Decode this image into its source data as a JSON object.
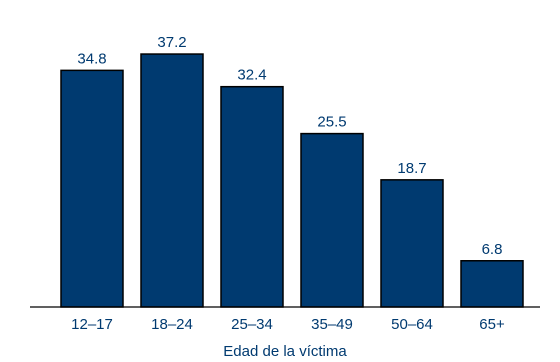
{
  "chart_data": {
    "type": "bar",
    "categories": [
      "12–17",
      "18–24",
      "25–34",
      "35–49",
      "50–64",
      "65+"
    ],
    "values": [
      34.8,
      37.2,
      32.4,
      25.5,
      18.7,
      6.8
    ],
    "value_labels": [
      "34.8",
      "37.2",
      "32.4",
      "25.5",
      "18.7",
      "6.8"
    ],
    "title": "",
    "xlabel": "Edad de la víctima",
    "ylabel": "",
    "ylim": [
      0,
      40
    ],
    "grid": false,
    "legend": "none"
  },
  "colors": {
    "bar_fill": "#003a70",
    "bar_stroke": "#000000",
    "text": "#003a70",
    "axis": "#000000",
    "background": "#ffffff"
  }
}
